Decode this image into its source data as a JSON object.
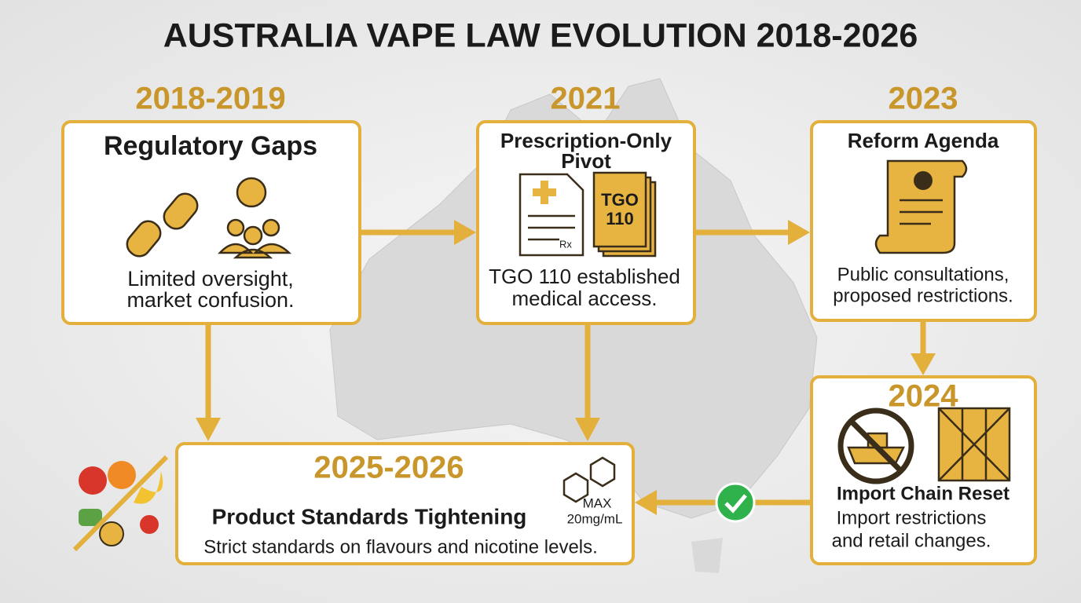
{
  "title": "AUSTRALIA VAPE LAW EVOLUTION 2018-2026",
  "stages": [
    {
      "year": "2018-2019",
      "heading": [
        "Regulatory Gaps"
      ],
      "description": [
        "Limited oversight,",
        "market confusion."
      ]
    },
    {
      "year": "2021",
      "heading": [
        "Prescription-Only",
        "Pivot"
      ],
      "icon_labels": [
        "TGO",
        "110",
        "Rx"
      ],
      "description": [
        "TGO 110 established",
        "medical access."
      ]
    },
    {
      "year": "2023",
      "heading": [
        "Reform Agenda"
      ],
      "description": [
        "Public consultations,",
        "proposed restrictions."
      ]
    },
    {
      "year": "2024",
      "heading": [
        "Import Chain Reset"
      ],
      "description": [
        "Import restrictions",
        "and retail changes."
      ]
    },
    {
      "year": "2025-2026",
      "heading": [
        "Product Standards Tightening"
      ],
      "icon_labels": [
        "MAX",
        "20mg/mL"
      ],
      "description": [
        "Strict standards on flavours and nicotine levels."
      ]
    }
  ]
}
